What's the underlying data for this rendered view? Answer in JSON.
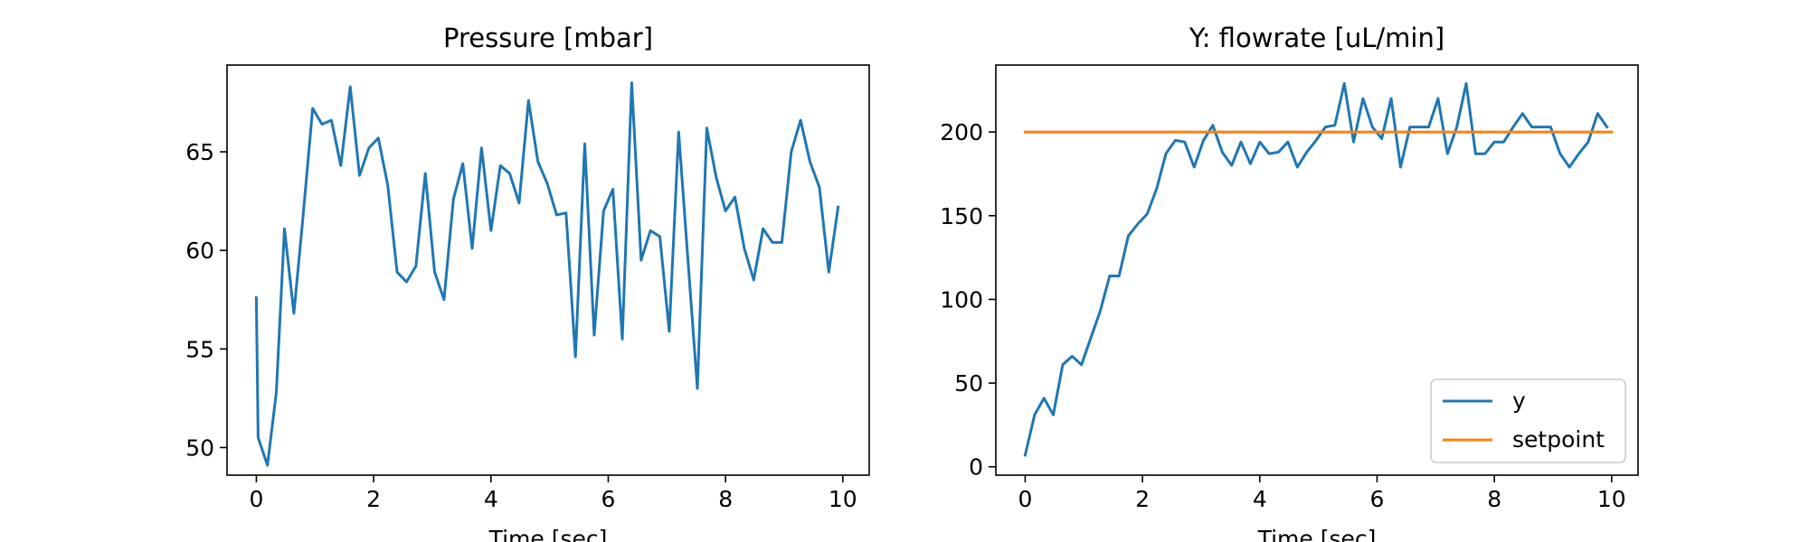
{
  "chart_data": [
    {
      "type": "line",
      "title": "Pressure [mbar]",
      "xlabel": "Time [sec]",
      "ylabel": "",
      "xlim": [
        -0.5,
        10.45
      ],
      "ylim": [
        48.6,
        69.4
      ],
      "xticks": [
        0,
        2,
        4,
        6,
        8,
        10
      ],
      "yticks": [
        50,
        55,
        60,
        65
      ],
      "grid": false,
      "series": [
        {
          "color": "#1f77b4",
          "x": [
            0.0,
            0.03,
            0.19,
            0.34,
            0.48,
            0.64,
            0.79,
            0.96,
            1.12,
            1.28,
            1.44,
            1.6,
            1.76,
            1.92,
            2.08,
            2.24,
            2.4,
            2.56,
            2.72,
            2.88,
            3.04,
            3.2,
            3.36,
            3.52,
            3.68,
            3.84,
            4.0,
            4.16,
            4.32,
            4.48,
            4.64,
            4.8,
            4.96,
            5.12,
            5.28,
            5.44,
            5.6,
            5.76,
            5.92,
            6.08,
            6.24,
            6.4,
            6.56,
            6.72,
            6.88,
            7.04,
            7.2,
            7.36,
            7.52,
            7.68,
            7.84,
            8.0,
            8.16,
            8.32,
            8.48,
            8.64,
            8.8,
            8.96,
            9.12,
            9.28,
            9.44,
            9.6,
            9.76,
            9.92
          ],
          "y": [
            57.6,
            50.5,
            49.1,
            52.8,
            61.1,
            56.8,
            61.5,
            67.2,
            66.4,
            66.6,
            64.3,
            68.3,
            63.8,
            65.2,
            65.7,
            63.3,
            58.9,
            58.4,
            59.2,
            63.9,
            58.9,
            57.5,
            62.6,
            64.4,
            60.1,
            65.2,
            61.0,
            64.3,
            63.9,
            62.4,
            67.6,
            64.5,
            63.4,
            61.8,
            61.9,
            54.6,
            65.4,
            55.7,
            62.0,
            63.1,
            55.5,
            68.5,
            59.5,
            61.0,
            60.7,
            55.9,
            66.0,
            59.5,
            53.0,
            66.2,
            63.7,
            62.0,
            62.7,
            60.1,
            58.5,
            61.1,
            60.4,
            60.4,
            65.0,
            66.6,
            64.5,
            63.2,
            58.9,
            62.2
          ]
        }
      ]
    },
    {
      "type": "line",
      "title": "Y: flowrate [uL/min]",
      "xlabel": "Time [sec]",
      "ylabel": "",
      "xlim": [
        -0.5,
        10.45
      ],
      "ylim": [
        -5,
        240
      ],
      "xticks": [
        0,
        2,
        4,
        6,
        8,
        10
      ],
      "yticks": [
        0,
        50,
        100,
        150,
        200
      ],
      "grid": false,
      "legend_position": "lower right",
      "series": [
        {
          "name": "y",
          "color": "#1f77b4",
          "x": [
            0.0,
            0.16,
            0.32,
            0.48,
            0.64,
            0.8,
            0.96,
            1.12,
            1.28,
            1.44,
            1.6,
            1.76,
            1.92,
            2.08,
            2.24,
            2.4,
            2.56,
            2.72,
            2.88,
            3.04,
            3.2,
            3.36,
            3.52,
            3.68,
            3.84,
            4.0,
            4.16,
            4.32,
            4.48,
            4.64,
            4.8,
            4.96,
            5.12,
            5.28,
            5.44,
            5.6,
            5.76,
            5.92,
            6.08,
            6.24,
            6.4,
            6.56,
            6.72,
            6.88,
            7.04,
            7.2,
            7.36,
            7.52,
            7.68,
            7.84,
            8.0,
            8.16,
            8.32,
            8.48,
            8.64,
            8.8,
            8.96,
            9.12,
            9.28,
            9.44,
            9.6,
            9.76,
            9.92
          ],
          "y": [
            7,
            31,
            41,
            31,
            61,
            66,
            61,
            77,
            93,
            114,
            114,
            138,
            145,
            151,
            166,
            187,
            195,
            194,
            179,
            195,
            204,
            188,
            180,
            194,
            181,
            194,
            187,
            188,
            194,
            179,
            188,
            195,
            203,
            204,
            229,
            194,
            220,
            203,
            196,
            220,
            179,
            203,
            203,
            203,
            220,
            187,
            203,
            229,
            187,
            187,
            194,
            194,
            203,
            211,
            203,
            203,
            203,
            187,
            179,
            187,
            194,
            211,
            203
          ]
        },
        {
          "name": "setpoint",
          "color": "#ff7f0e",
          "x": [
            0,
            10
          ],
          "y": [
            200,
            200
          ]
        }
      ]
    }
  ]
}
